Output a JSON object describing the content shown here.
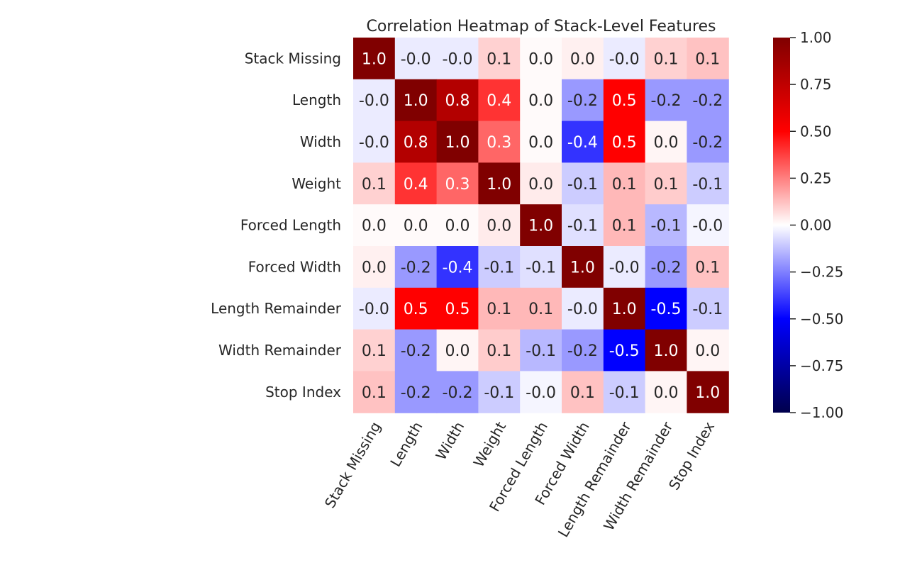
{
  "chart_data": {
    "type": "heatmap",
    "title": "Correlation Heatmap of Stack-Level Features",
    "rows": [
      "Stack Missing",
      "Length",
      "Width",
      "Weight",
      "Forced Length",
      "Forced Width",
      "Length Remainder",
      "Width Remainder",
      "Stop Index"
    ],
    "columns": [
      "Stack Missing",
      "Length",
      "Width",
      "Weight",
      "Forced Length",
      "Forced Width",
      "Length Remainder",
      "Width Remainder",
      "Stop Index"
    ],
    "values": [
      [
        1.0,
        -0.04,
        -0.04,
        0.09,
        0.01,
        0.03,
        -0.04,
        0.09,
        0.12
      ],
      [
        -0.04,
        1.0,
        0.8,
        0.4,
        0.01,
        -0.2,
        0.5,
        -0.2,
        -0.2
      ],
      [
        -0.04,
        0.8,
        1.0,
        0.3,
        0.01,
        -0.4,
        0.5,
        0.02,
        -0.2
      ],
      [
        0.09,
        0.4,
        0.3,
        1.0,
        0.04,
        -0.1,
        0.14,
        0.1,
        -0.1
      ],
      [
        0.01,
        0.01,
        0.01,
        0.04,
        1.0,
        -0.06,
        0.14,
        -0.14,
        -0.02
      ],
      [
        0.03,
        -0.2,
        -0.4,
        -0.1,
        -0.06,
        1.0,
        -0.04,
        -0.2,
        0.12
      ],
      [
        -0.04,
        0.5,
        0.5,
        0.14,
        0.14,
        -0.04,
        1.0,
        -0.5,
        -0.1
      ],
      [
        0.09,
        -0.2,
        0.02,
        0.1,
        -0.14,
        -0.2,
        -0.5,
        1.0,
        0.02
      ],
      [
        0.12,
        -0.2,
        -0.2,
        -0.1,
        -0.02,
        0.12,
        -0.1,
        0.02,
        1.0
      ]
    ],
    "labels": [
      [
        "1.0",
        "-0.0",
        "-0.0",
        "0.1",
        "0.0",
        "0.0",
        "-0.0",
        "0.1",
        "0.1"
      ],
      [
        "-0.0",
        "1.0",
        "0.8",
        "0.4",
        "0.0",
        "-0.2",
        "0.5",
        "-0.2",
        "-0.2"
      ],
      [
        "-0.0",
        "0.8",
        "1.0",
        "0.3",
        "0.0",
        "-0.4",
        "0.5",
        "0.0",
        "-0.2"
      ],
      [
        "0.1",
        "0.4",
        "0.3",
        "1.0",
        "0.0",
        "-0.1",
        "0.1",
        "0.1",
        "-0.1"
      ],
      [
        "0.0",
        "0.0",
        "0.0",
        "0.0",
        "1.0",
        "-0.1",
        "0.1",
        "-0.1",
        "-0.0"
      ],
      [
        "0.0",
        "-0.2",
        "-0.4",
        "-0.1",
        "-0.1",
        "1.0",
        "-0.0",
        "-0.2",
        "0.1"
      ],
      [
        "-0.0",
        "0.5",
        "0.5",
        "0.1",
        "0.1",
        "-0.0",
        "1.0",
        "-0.5",
        "-0.1"
      ],
      [
        "0.1",
        "-0.2",
        "0.0",
        "0.1",
        "-0.1",
        "-0.2",
        "-0.5",
        "1.0",
        "0.0"
      ],
      [
        "0.1",
        "-0.2",
        "-0.2",
        "-0.1",
        "-0.0",
        "0.1",
        "-0.1",
        "0.0",
        "1.0"
      ]
    ],
    "colorscale": "seismic",
    "vmin": -1.0,
    "vmax": 1.0,
    "colorbar_ticks": [
      "−1.00",
      "−0.75",
      "−0.50",
      "−0.25",
      "0.00",
      "0.25",
      "0.50",
      "0.75",
      "1.00"
    ],
    "colorbar_tick_values": [
      -1.0,
      -0.75,
      -0.5,
      -0.25,
      0.0,
      0.25,
      0.5,
      0.75,
      1.0
    ],
    "xlabel": "",
    "ylabel": "",
    "grid": false
  }
}
